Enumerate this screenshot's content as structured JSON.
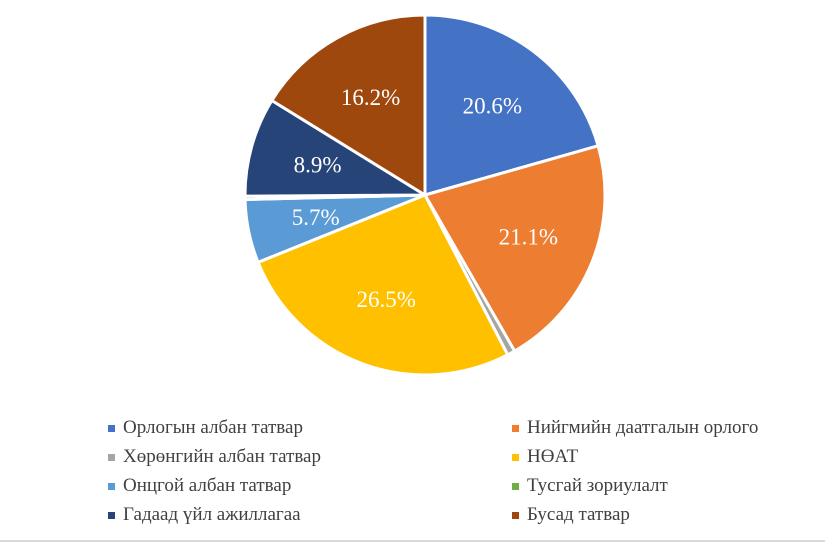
{
  "chart_data": {
    "type": "pie",
    "series": [
      {
        "name": "Орлогын албан татвар",
        "value": 20.6,
        "label": "20.6%",
        "color": "#4472C4"
      },
      {
        "name": "Нийгмийн даатгалын орлого",
        "value": 21.1,
        "label": "21.1%",
        "color": "#ED7D31"
      },
      {
        "name": "Хөрөнгийн албан татвар",
        "value": 0.7,
        "label": "",
        "color": "#A5A5A5"
      },
      {
        "name": "НӨАТ",
        "value": 26.5,
        "label": "26.5%",
        "color": "#FFC000"
      },
      {
        "name": "Онцгой албан татвар",
        "value": 5.7,
        "label": "5.7%",
        "color": "#5B9BD5"
      },
      {
        "name": "Тусгай зориулалт",
        "value": 0.3,
        "label": "",
        "color": "#70AD47"
      },
      {
        "name": "Гадаад үйл ажиллагаа",
        "value": 8.9,
        "label": "8.9%",
        "color": "#264478"
      },
      {
        "name": "Бусад татвар",
        "value": 16.2,
        "label": "16.2%",
        "color": "#9E480E"
      }
    ],
    "legend_position": "bottom",
    "legend": [
      {
        "label": "Орлогын албан татвар",
        "color": "#4472C4"
      },
      {
        "label": "Нийгмийн даатгалын орлого",
        "color": "#ED7D31"
      },
      {
        "label": "Хөрөнгийн албан татвар",
        "color": "#A5A5A5"
      },
      {
        "label": "НӨАТ",
        "color": "#FFC000"
      },
      {
        "label": "Онцгой албан татвар",
        "color": "#5B9BD5"
      },
      {
        "label": "Тусгай зориулалт",
        "color": "#70AD47"
      },
      {
        "label": "Гадаад үйл ажиллагаа",
        "color": "#264478"
      },
      {
        "label": "Бусад татвар",
        "color": "#9E480E"
      }
    ]
  }
}
